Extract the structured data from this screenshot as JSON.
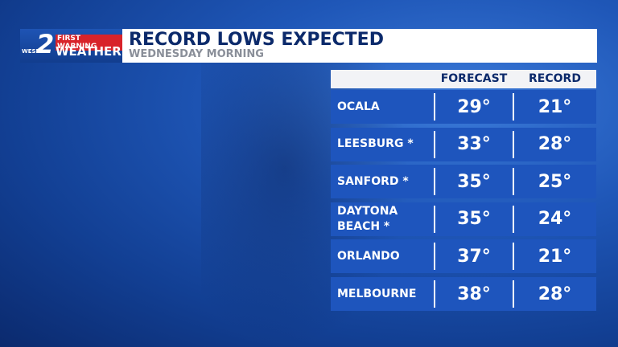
{
  "header": {
    "logo": {
      "station": "WESH",
      "channel": "2",
      "tagline": "FIRST WARNING",
      "brand": "WEATHER"
    },
    "title": "RECORD LOWS EXPECTED",
    "subtitle": "WEDNESDAY MORNING"
  },
  "table": {
    "columns": [
      "FORECAST",
      "RECORD"
    ],
    "rows": [
      [
        "OCALA",
        "29°",
        "21°"
      ],
      [
        "LEESBURG *",
        "33°",
        "28°"
      ],
      [
        "SANFORD *",
        "35°",
        "25°"
      ],
      [
        "DAYTONA BEACH *",
        "35°",
        "24°"
      ],
      [
        "ORLANDO",
        "37°",
        "21°"
      ],
      [
        "MELBOURNE",
        "38°",
        "28°"
      ]
    ]
  }
}
